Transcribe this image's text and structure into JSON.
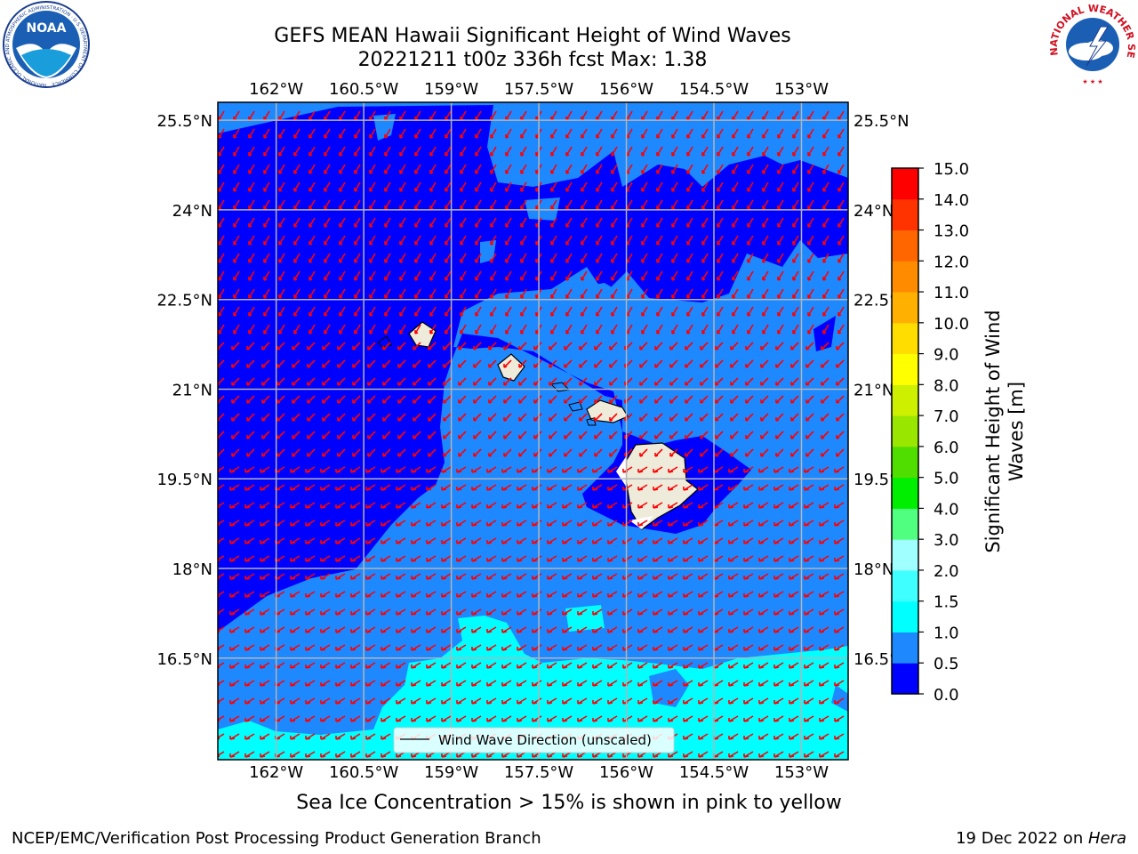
{
  "header": {
    "title_line1": "GEFS MEAN Hawaii Significant Height of Wind Waves",
    "title_line2": "20221211 t00z 336h fcst   Max: 1.38"
  },
  "logos": {
    "left_ring_text": "NATIONAL OCEANIC AND ATMOSPHERIC ADMINISTRATION · U.S. DEPARTMENT OF COMMERCE",
    "left_center": "NOAA",
    "right_ring_text": "NATIONAL WEATHER SERVICE"
  },
  "map": {
    "lon_labels": [
      "162°W",
      "160.5°W",
      "159°W",
      "157.5°W",
      "156°W",
      "154.5°W",
      "153°W"
    ],
    "lat_labels": [
      "25.5°N",
      "24°N",
      "22.5°N",
      "21°N",
      "19.5°N",
      "18°N",
      "16.5°N"
    ],
    "lon_values": [
      -162,
      -160.5,
      -159,
      -157.5,
      -156,
      -154.5,
      -153
    ],
    "lat_values": [
      25.5,
      24,
      22.5,
      21,
      19.5,
      18,
      16.5
    ],
    "extent": {
      "lon_min": -163,
      "lon_max": -152.2,
      "lat_min": 14.8,
      "lat_max": 25.8
    },
    "legend_label": "Wind Wave Direction (unscaled)",
    "arrow_color": "#ff0000",
    "land_color": "#efebdb"
  },
  "colorbar": {
    "label": "Significant Height of Wind Waves [m]",
    "label_line1": "Significant Height of Wind",
    "label_line2": "Waves [m]",
    "tick_labels": [
      "0.0",
      "0.5",
      "1.0",
      "1.5",
      "2.0",
      "3.0",
      "4.0",
      "5.0",
      "6.0",
      "7.0",
      "8.0",
      "9.0",
      "10.0",
      "11.0",
      "12.0",
      "13.0",
      "14.0",
      "15.0"
    ],
    "colors": [
      "#0000ff",
      "#1e88ff",
      "#00ffff",
      "#40ffff",
      "#a0ffff",
      "#50ff80",
      "#00ee00",
      "#50dd00",
      "#99e600",
      "#ccf000",
      "#ffff00",
      "#ffdd00",
      "#ffb000",
      "#ff8c00",
      "#ff6600",
      "#ff3300",
      "#ff0000"
    ]
  },
  "subtitle": "Sea Ice Concentration > 15% is shown in pink to yellow",
  "footer": {
    "left": "NCEP/EMC/Verification Post Processing Product Generation Branch",
    "right_prefix": "19 Dec 2022 on ",
    "right_host": "Hera"
  }
}
